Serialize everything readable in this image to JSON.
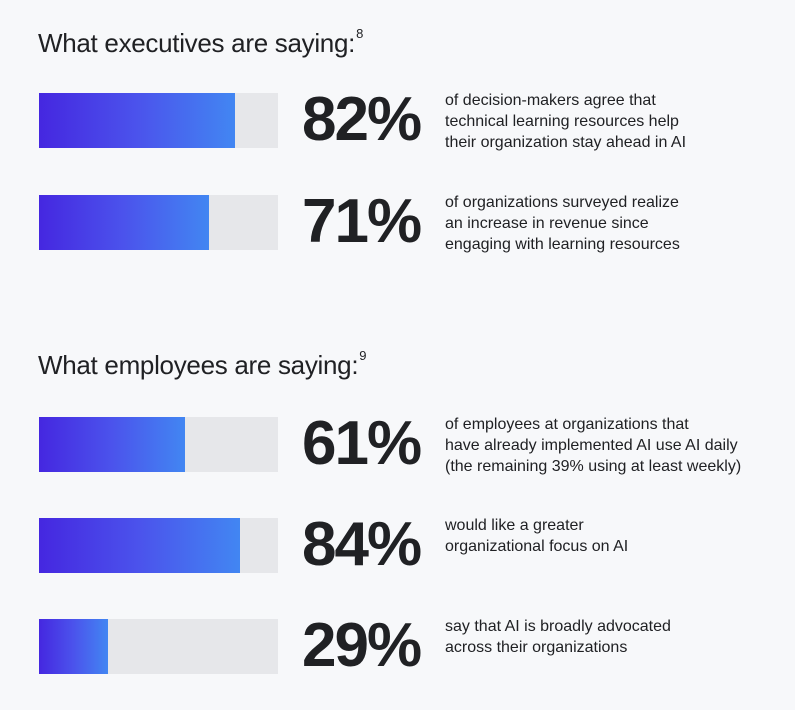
{
  "chart_data": [
    {
      "type": "bar",
      "orientation": "horizontal",
      "title": "What executives are saying:",
      "footnote": "8",
      "ylim": [
        0,
        100
      ],
      "categories": [
        "of decision-makers agree that\ntechnical learning resources help\ntheir organization stay ahead in AI",
        "of organizations surveyed realize\nan increase in revenue since\nengaging with learning resources"
      ],
      "values": [
        82,
        71
      ],
      "labels": [
        "82%",
        "71%"
      ]
    },
    {
      "type": "bar",
      "orientation": "horizontal",
      "title": "What employees are saying:",
      "footnote": "9",
      "ylim": [
        0,
        100
      ],
      "categories": [
        "of employees at organizations that\nhave already implemented AI use AI daily\n(the remaining 39% using at least weekly)",
        "would like a greater\norganizational focus on AI",
        "say that AI is broadly advocated\nacross their organizations"
      ],
      "values": [
        61,
        84,
        29
      ],
      "labels": [
        "61%",
        "84%",
        "29%"
      ]
    }
  ],
  "colors": {
    "bar_start": "#4527e0",
    "bar_end": "#4286f2",
    "track": "#e6e7ea",
    "background": "#f7f8fa",
    "text": "#202124"
  }
}
